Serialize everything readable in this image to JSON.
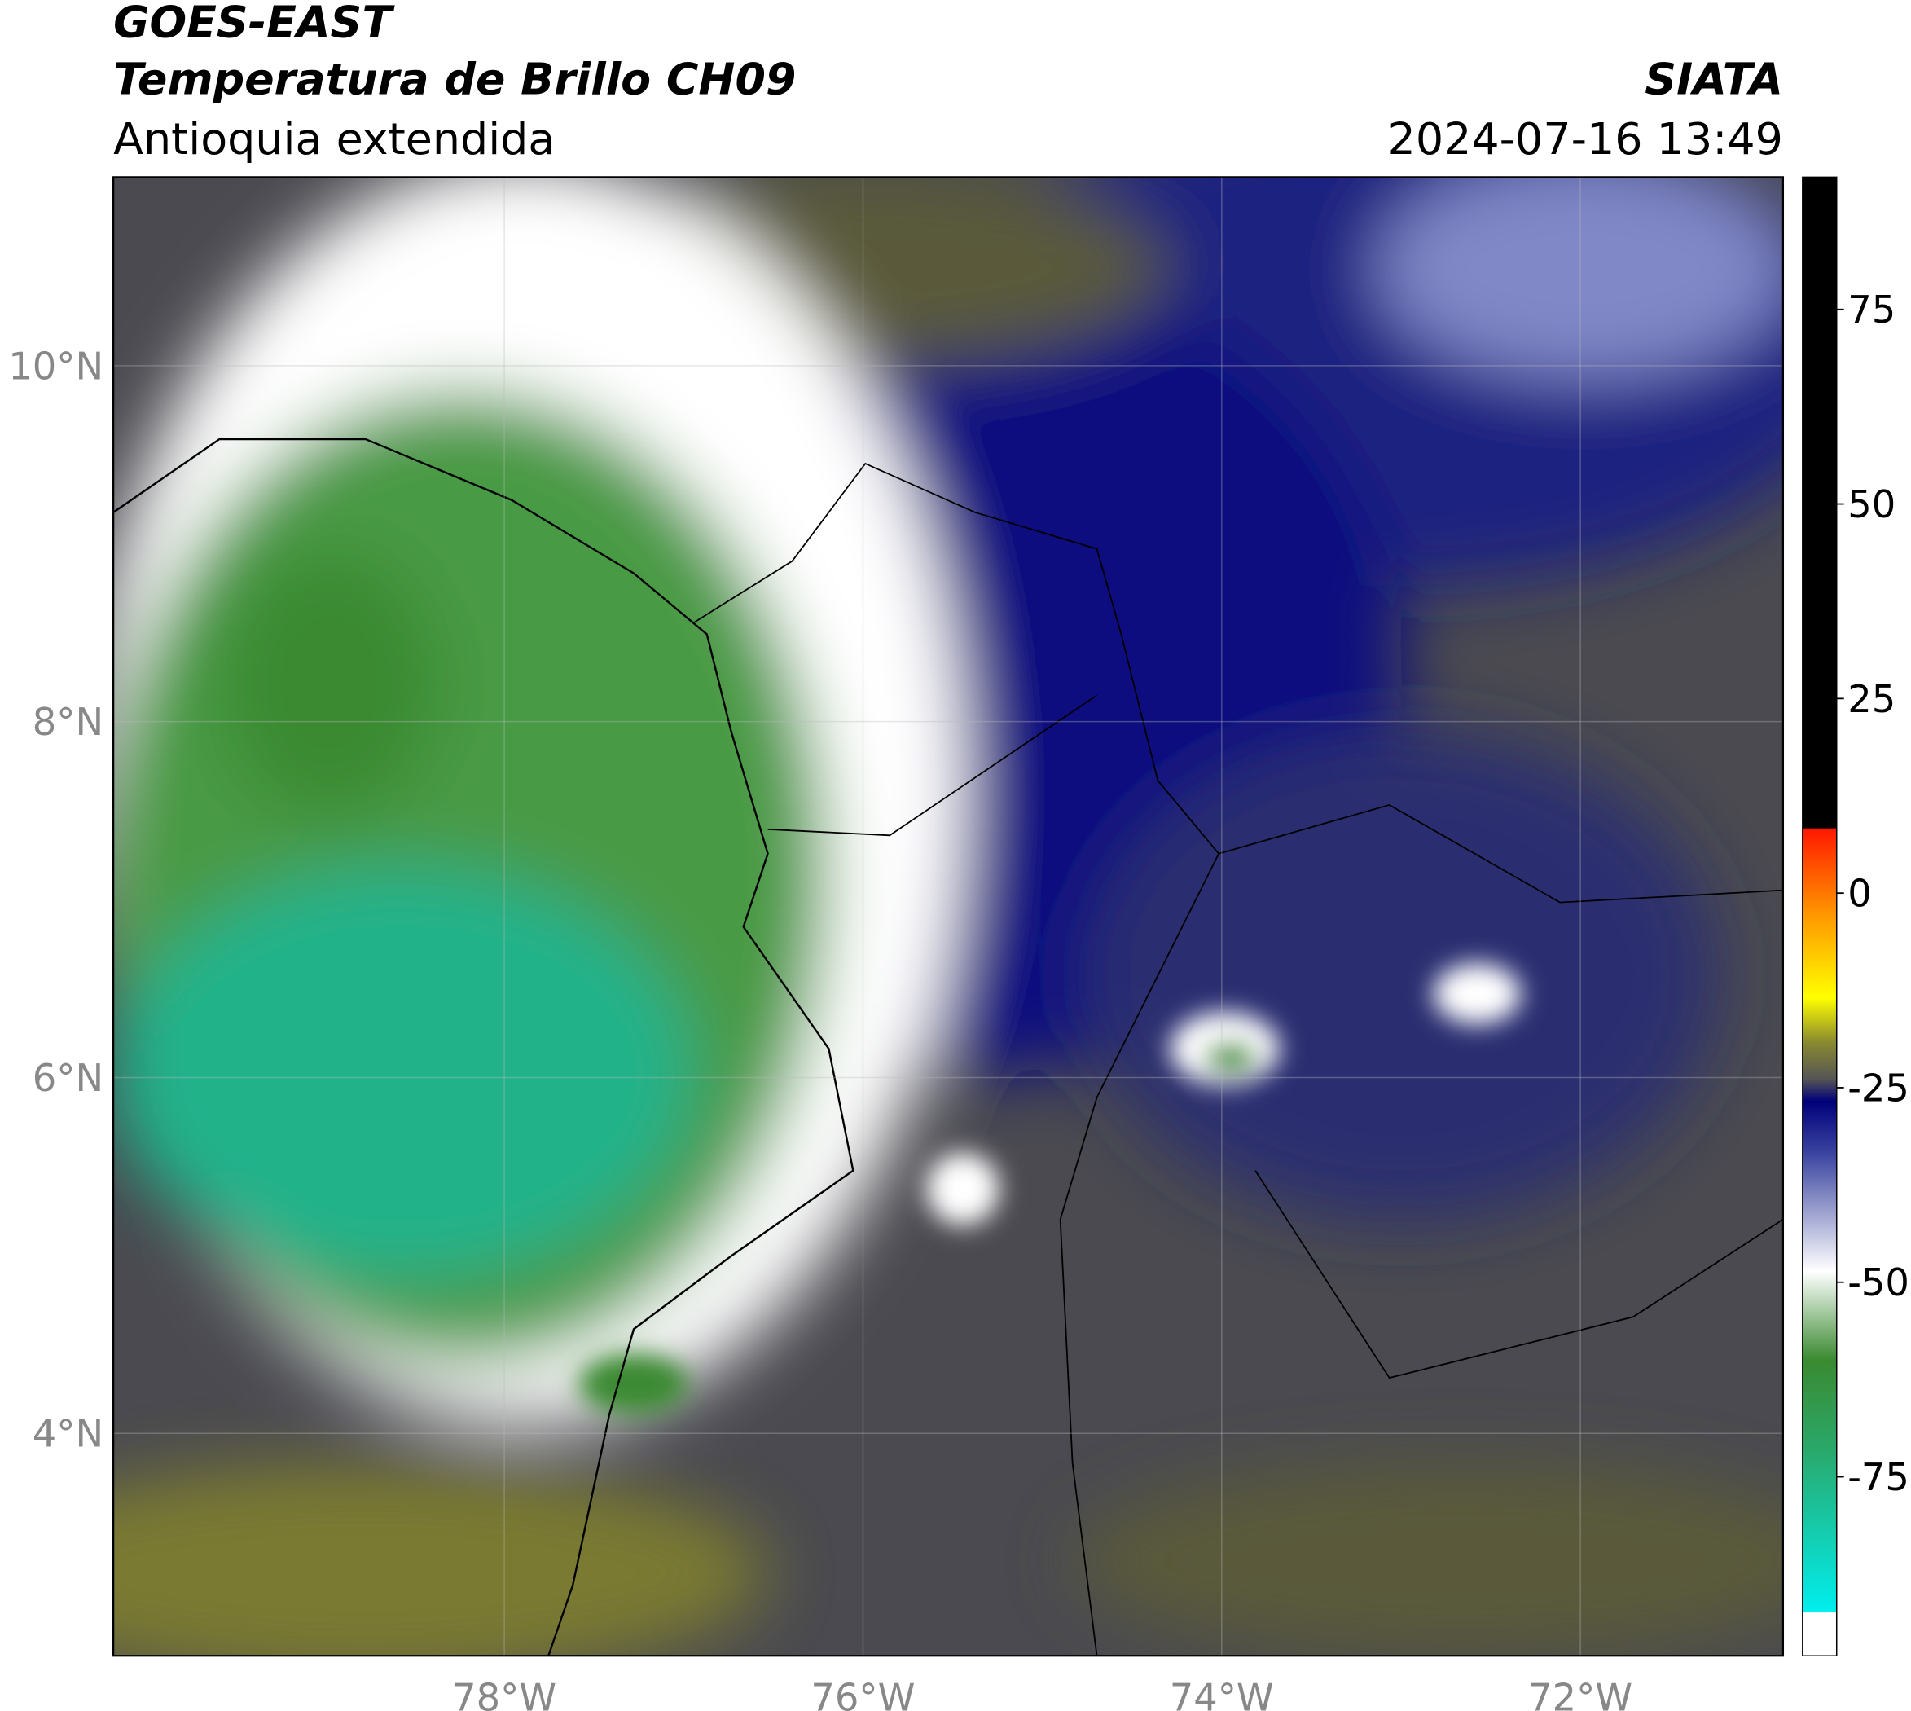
{
  "header": {
    "title": "GOES-EAST",
    "subtitle": "Temperatura de Brillo CH09",
    "region": "Antioquia extendida",
    "source": "SIATA",
    "datetime": "2024-07-16 13:49"
  },
  "map": {
    "xlim": [
      -80.18,
      -70.87
    ],
    "ylim": [
      2.75,
      11.06
    ],
    "xticks": [
      {
        "value": -78,
        "label": "78°W"
      },
      {
        "value": -76,
        "label": "76°W"
      },
      {
        "value": -74,
        "label": "74°W"
      },
      {
        "value": -72,
        "label": "72°W"
      }
    ],
    "yticks": [
      {
        "value": 4,
        "label": "4°N"
      },
      {
        "value": 6,
        "label": "6°N"
      },
      {
        "value": 8,
        "label": "8°N"
      },
      {
        "value": 10,
        "label": "10°N"
      }
    ],
    "grid": true
  },
  "colorbar": {
    "lim": [
      -98,
      92
    ],
    "ticks": [
      -75,
      -50,
      -25,
      0,
      25,
      50,
      75
    ]
  }
}
